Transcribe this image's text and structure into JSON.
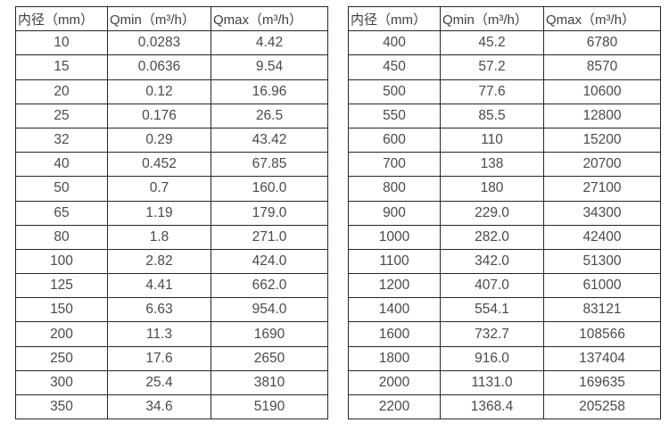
{
  "colors": {
    "background": "#ffffff",
    "border": "#262626",
    "header_text": "#3f3f3f",
    "cell_text": "#4a4a4a"
  },
  "tables": [
    {
      "title": "flow-table-small-diameters",
      "headers": [
        "内径（mm）",
        "Qmin（m³/h）",
        "Qmax（m³/h）"
      ],
      "rows": [
        [
          "10",
          "0.0283",
          "4.42"
        ],
        [
          "15",
          "0.0636",
          "9.54"
        ],
        [
          "20",
          "0.12",
          "16.96"
        ],
        [
          "25",
          "0.176",
          "26.5"
        ],
        [
          "32",
          "0.29",
          "43.42"
        ],
        [
          "40",
          "0.452",
          "67.85"
        ],
        [
          "50",
          "0.7",
          "160.0"
        ],
        [
          "65",
          "1.19",
          "179.0"
        ],
        [
          "80",
          "1.8",
          "271.0"
        ],
        [
          "100",
          "2.82",
          "424.0"
        ],
        [
          "125",
          "4.41",
          "662.0"
        ],
        [
          "150",
          "6.63",
          "954.0"
        ],
        [
          "200",
          "11.3",
          "1690"
        ],
        [
          "250",
          "17.6",
          "2650"
        ],
        [
          "300",
          "25.4",
          "3810"
        ],
        [
          "350",
          "34.6",
          "5190"
        ]
      ]
    },
    {
      "title": "flow-table-large-diameters",
      "headers": [
        "内径（mm）",
        "Qmin（m³/h）",
        "Qmax（m³/h）"
      ],
      "rows": [
        [
          "400",
          "45.2",
          "6780"
        ],
        [
          "450",
          "57.2",
          "8570"
        ],
        [
          "500",
          "77.6",
          "10600"
        ],
        [
          "550",
          "85.5",
          "12800"
        ],
        [
          "600",
          "110",
          "15200"
        ],
        [
          "700",
          "138",
          "20700"
        ],
        [
          "800",
          "180",
          "27100"
        ],
        [
          "900",
          "229.0",
          "34300"
        ],
        [
          "1000",
          "282.0",
          "42400"
        ],
        [
          "1100",
          "342.0",
          "51300"
        ],
        [
          "1200",
          "407.0",
          "61000"
        ],
        [
          "1400",
          "554.1",
          "83121"
        ],
        [
          "1600",
          "732.7",
          "108566"
        ],
        [
          "1800",
          "916.0",
          "137404"
        ],
        [
          "2000",
          "1131.0",
          "169635"
        ],
        [
          "2200",
          "1368.4",
          "205258"
        ]
      ]
    }
  ]
}
